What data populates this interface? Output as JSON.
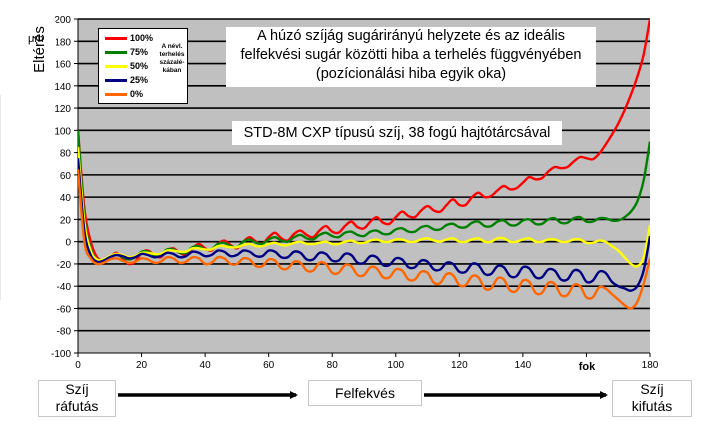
{
  "y_axis_title": "Eltérés",
  "y_unit": "μm",
  "title_lines": [
    "A húzó szíjág sugárirányú helyzete és az ideális",
    "felfekvési sugár közötti hiba a terhelés függvényében",
    "(pozícionálási hiba egyik oka)"
  ],
  "subtitle": "STD-8M CXP típusú szíj, 38 fogú hajtótárcsával",
  "x_unit": "fok",
  "legend_note": [
    "A névl.",
    "terhelés",
    "százalé-",
    "kában"
  ],
  "bottom": {
    "left_lines": [
      "Szíj",
      "ráfutás"
    ],
    "middle": "Felfekvés",
    "right_lines": [
      "Szíj",
      "kifutás"
    ]
  },
  "colors": {
    "plot_bg": "#c0c0c0",
    "grid": "#000000",
    "arrow": "#000000"
  },
  "chart_data": {
    "type": "line",
    "xlim": [
      0,
      180
    ],
    "ylim": [
      -100,
      200
    ],
    "x_ticks": [
      0,
      20,
      40,
      60,
      80,
      100,
      120,
      140,
      160,
      180
    ],
    "y_ticks": [
      -100,
      -80,
      -60,
      -40,
      -20,
      0,
      20,
      40,
      60,
      80,
      100,
      120,
      140,
      160,
      180,
      200
    ],
    "x_tick_labels": [
      "0",
      "20",
      "40",
      "60",
      "80",
      "100",
      "120",
      "140",
      "160",
      "180"
    ],
    "y_tick_labels": [
      "-100",
      "-80",
      "-60",
      "-40",
      "-20",
      "0",
      "20",
      "40",
      "60",
      "80",
      "100",
      "120",
      "140",
      "160",
      "180",
      "200"
    ],
    "grid": true,
    "legend_position": "top-left",
    "x": [
      0,
      2,
      4,
      6,
      8,
      10,
      12,
      14,
      16,
      18,
      20,
      22,
      24,
      26,
      28,
      30,
      32,
      34,
      36,
      38,
      40,
      42,
      44,
      46,
      48,
      50,
      52,
      54,
      56,
      58,
      60,
      62,
      64,
      66,
      68,
      70,
      72,
      74,
      76,
      78,
      80,
      82,
      84,
      86,
      88,
      90,
      92,
      94,
      96,
      98,
      100,
      102,
      104,
      106,
      108,
      110,
      112,
      114,
      116,
      118,
      120,
      122,
      124,
      126,
      128,
      130,
      132,
      134,
      136,
      138,
      140,
      142,
      144,
      146,
      148,
      150,
      152,
      154,
      156,
      158,
      160,
      162,
      164,
      166,
      168,
      170,
      172,
      174,
      176,
      178,
      180
    ],
    "series": [
      {
        "name": "100%",
        "color": "#ff0000",
        "values": [
          100,
          30,
          0,
          -14,
          -17,
          -14,
          -10,
          -15,
          -20,
          -18,
          -10,
          -8,
          -12,
          -14,
          -8,
          -6,
          -10,
          -12,
          -6,
          -2,
          -6,
          -8,
          -2,
          1,
          -3,
          -6,
          0,
          4,
          0,
          -2,
          4,
          8,
          3,
          1,
          7,
          10,
          6,
          4,
          10,
          14,
          9,
          8,
          14,
          18,
          13,
          12,
          18,
          22,
          17,
          16,
          22,
          27,
          23,
          22,
          28,
          32,
          28,
          27,
          33,
          38,
          33,
          33,
          40,
          44,
          40,
          41,
          46,
          50,
          47,
          48,
          53,
          58,
          56,
          57,
          63,
          67,
          66,
          67,
          72,
          76,
          75,
          74,
          79,
          87,
          96,
          106,
          118,
          132,
          148,
          168,
          200
        ]
      },
      {
        "name": "75%",
        "color": "#008000",
        "values": [
          100,
          22,
          -6,
          -16,
          -17,
          -14,
          -11,
          -14,
          -16,
          -14,
          -9,
          -9,
          -12,
          -12,
          -7,
          -7,
          -10,
          -10,
          -5,
          -4,
          -7,
          -7,
          -2,
          -1,
          -4,
          -5,
          0,
          2,
          -1,
          -2,
          2,
          4,
          1,
          0,
          4,
          6,
          3,
          2,
          6,
          8,
          5,
          4,
          8,
          9,
          6,
          5,
          9,
          10,
          7,
          7,
          11,
          12,
          9,
          9,
          13,
          14,
          11,
          11,
          15,
          16,
          13,
          13,
          17,
          18,
          14,
          14,
          18,
          19,
          15,
          15,
          19,
          20,
          16,
          16,
          20,
          21,
          17,
          17,
          21,
          22,
          18,
          18,
          21,
          21,
          19,
          19,
          22,
          27,
          36,
          55,
          90
        ]
      },
      {
        "name": "50%",
        "color": "#ffff00",
        "values": [
          85,
          18,
          -8,
          -16,
          -16,
          -13,
          -11,
          -12,
          -14,
          -13,
          -10,
          -10,
          -11,
          -11,
          -8,
          -8,
          -9,
          -9,
          -6,
          -6,
          -7,
          -7,
          -4,
          -4,
          -5,
          -5,
          -3,
          -2,
          -4,
          -4,
          -2,
          -1,
          -3,
          -3,
          -1,
          0,
          -2,
          -2,
          -1,
          0,
          -2,
          -2,
          0,
          1,
          -1,
          -1,
          1,
          2,
          0,
          0,
          2,
          2,
          0,
          0,
          2,
          3,
          1,
          0,
          2,
          3,
          0,
          0,
          2,
          3,
          0,
          0,
          3,
          3,
          0,
          0,
          2,
          3,
          0,
          0,
          2,
          2,
          0,
          0,
          2,
          2,
          -1,
          -1,
          1,
          0,
          -4,
          -8,
          -14,
          -20,
          -22,
          -14,
          15
        ]
      },
      {
        "name": "25%",
        "color": "#000080",
        "values": [
          75,
          10,
          -12,
          -18,
          -17,
          -14,
          -12,
          -13,
          -15,
          -14,
          -11,
          -12,
          -14,
          -13,
          -10,
          -11,
          -14,
          -13,
          -9,
          -10,
          -13,
          -12,
          -8,
          -9,
          -13,
          -12,
          -8,
          -9,
          -13,
          -13,
          -8,
          -9,
          -14,
          -14,
          -9,
          -10,
          -16,
          -16,
          -10,
          -11,
          -17,
          -17,
          -11,
          -12,
          -19,
          -19,
          -13,
          -14,
          -21,
          -21,
          -15,
          -16,
          -23,
          -23,
          -17,
          -18,
          -25,
          -25,
          -19,
          -20,
          -27,
          -27,
          -20,
          -21,
          -29,
          -29,
          -22,
          -23,
          -31,
          -31,
          -23,
          -24,
          -32,
          -32,
          -25,
          -26,
          -34,
          -34,
          -26,
          -27,
          -36,
          -35,
          -27,
          -28,
          -36,
          -40,
          -42,
          -44,
          -40,
          -26,
          5
        ]
      },
      {
        "name": "0%",
        "color": "#ff6600",
        "values": [
          65,
          0,
          -15,
          -20,
          -19,
          -16,
          -15,
          -17,
          -19,
          -18,
          -15,
          -16,
          -19,
          -18,
          -14,
          -15,
          -19,
          -18,
          -14,
          -15,
          -20,
          -19,
          -14,
          -15,
          -20,
          -20,
          -15,
          -16,
          -22,
          -22,
          -16,
          -17,
          -24,
          -24,
          -18,
          -19,
          -26,
          -26,
          -19,
          -20,
          -28,
          -28,
          -21,
          -22,
          -30,
          -30,
          -23,
          -24,
          -32,
          -32,
          -25,
          -26,
          -34,
          -34,
          -27,
          -28,
          -37,
          -37,
          -29,
          -30,
          -39,
          -39,
          -31,
          -32,
          -42,
          -42,
          -33,
          -34,
          -44,
          -44,
          -35,
          -36,
          -46,
          -46,
          -37,
          -38,
          -48,
          -48,
          -39,
          -40,
          -50,
          -50,
          -41,
          -42,
          -47,
          -52,
          -57,
          -60,
          -54,
          -38,
          -15
        ]
      }
    ]
  }
}
